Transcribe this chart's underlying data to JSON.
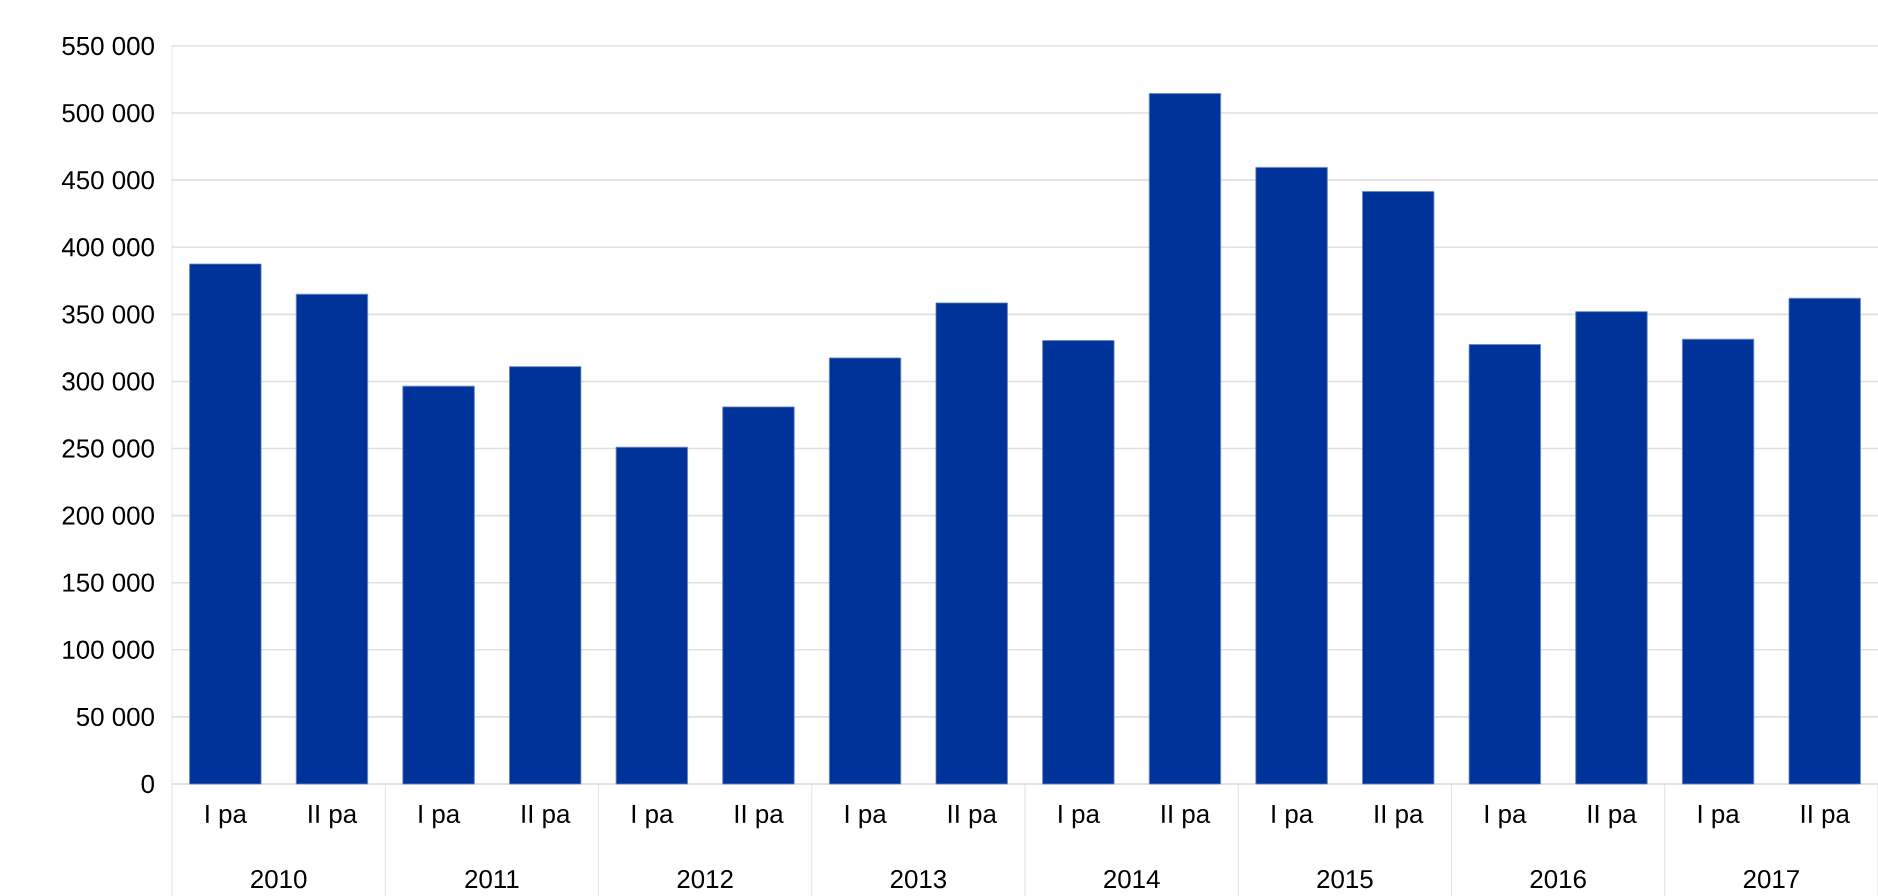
{
  "chart_data": {
    "type": "bar",
    "categories": [
      "I pa",
      "II pa",
      "I pa",
      "II pa",
      "I pa",
      "II pa",
      "I pa",
      "II pa",
      "I pa",
      "II pa",
      "I pa",
      "II pa",
      "I pa",
      "II pa",
      "I pa",
      "II pa"
    ],
    "values": [
      387500,
      365000,
      296500,
      311000,
      251000,
      281000,
      317500,
      358500,
      330500,
      514500,
      459500,
      441500,
      327500,
      352000,
      331500,
      362000
    ],
    "color": "#003399",
    "ylim": [
      0,
      550000
    ],
    "yticks": [
      0,
      {
        "value": 50000,
        "label": "50 000"
      },
      {
        "value": 100000,
        "label": "100 000"
      },
      {
        "value": 150000,
        "label": "150 000"
      },
      {
        "value": 200000,
        "label": "200 000"
      },
      {
        "value": 250000,
        "label": "250 000"
      },
      {
        "value": 300000,
        "label": "300 000"
      },
      {
        "value": 350000,
        "label": "350 000"
      },
      {
        "value": 400000,
        "label": "400 000"
      },
      {
        "value": 450000,
        "label": "450 000"
      },
      {
        "value": 500000,
        "label": "500 000"
      },
      {
        "value": 550000,
        "label": "550 000"
      }
    ],
    "annotations": [
      "2010",
      "2011",
      "2012",
      "2013",
      "2014",
      "2015",
      "2016",
      "2017"
    ],
    "grid": "y"
  }
}
